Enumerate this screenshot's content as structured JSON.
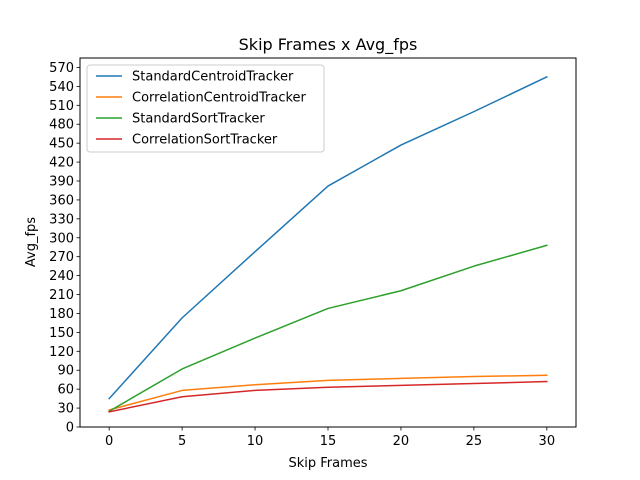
{
  "chart_data": {
    "type": "line",
    "title": "Skip Frames x Avg_fps",
    "xlabel": "Skip Frames",
    "ylabel": "Avg_fps",
    "x": [
      0,
      5,
      10,
      15,
      20,
      25,
      30
    ],
    "xlim": [
      -2,
      32
    ],
    "ylim": [
      0,
      585
    ],
    "xticks": [
      0,
      5,
      10,
      15,
      20,
      25,
      30
    ],
    "yticks": [
      0,
      30,
      60,
      90,
      120,
      150,
      180,
      210,
      240,
      270,
      300,
      330,
      360,
      390,
      420,
      450,
      480,
      510,
      540,
      570
    ],
    "grid": false,
    "legend_position": "top-left",
    "series": [
      {
        "name": "StandardCentroidTracker",
        "color": "#1f77b4",
        "values": [
          45,
          173,
          278,
          382,
          447,
          500,
          555
        ]
      },
      {
        "name": "CorrelationCentroidTracker",
        "color": "#ff7f0e",
        "values": [
          27,
          58,
          67,
          74,
          77,
          80,
          82
        ]
      },
      {
        "name": "StandardSortTracker",
        "color": "#2ca02c",
        "values": [
          25,
          92,
          141,
          188,
          216,
          255,
          288
        ]
      },
      {
        "name": "CorrelationSortTracker",
        "color": "#d62728",
        "values": [
          24,
          48,
          58,
          63,
          66,
          69,
          72
        ]
      }
    ]
  }
}
